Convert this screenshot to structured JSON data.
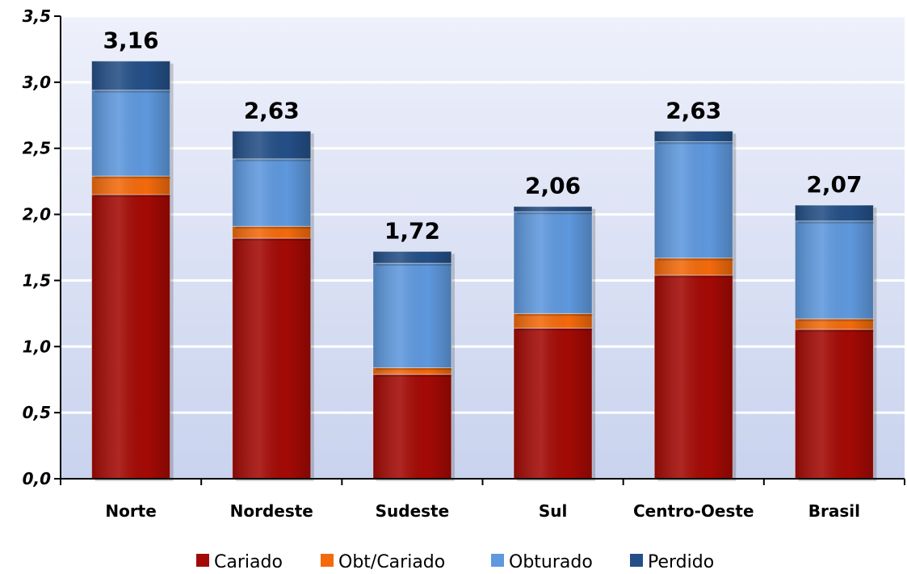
{
  "chart_data": {
    "type": "bar",
    "stacked": true,
    "categories": [
      "Norte",
      "Nordeste",
      "Sudeste",
      "Sul",
      "Centro-Oeste",
      "Brasil"
    ],
    "series": [
      {
        "name": "Cariado",
        "color": "#a30a05",
        "values": [
          2.15,
          1.82,
          0.79,
          1.14,
          1.54,
          1.13
        ]
      },
      {
        "name": "Obt/Cariado",
        "color": "#f26a0c",
        "values": [
          0.14,
          0.09,
          0.05,
          0.11,
          0.13,
          0.08
        ]
      },
      {
        "name": "Obturado",
        "color": "#5e98dd",
        "values": [
          0.65,
          0.51,
          0.79,
          0.77,
          0.88,
          0.74
        ]
      },
      {
        "name": "Perdido",
        "color": "#244f86",
        "values": [
          0.22,
          0.21,
          0.09,
          0.04,
          0.08,
          0.12
        ]
      }
    ],
    "totals": [
      "3,16",
      "2,63",
      "1,72",
      "2,06",
      "2,63",
      "2,07"
    ],
    "y_ticks": [
      "0,0",
      "0,5",
      "1,0",
      "1,5",
      "2,0",
      "2,5",
      "3,0",
      "3,5"
    ],
    "ylim": [
      0,
      3.5
    ],
    "grid": true,
    "legend": "bottom"
  }
}
